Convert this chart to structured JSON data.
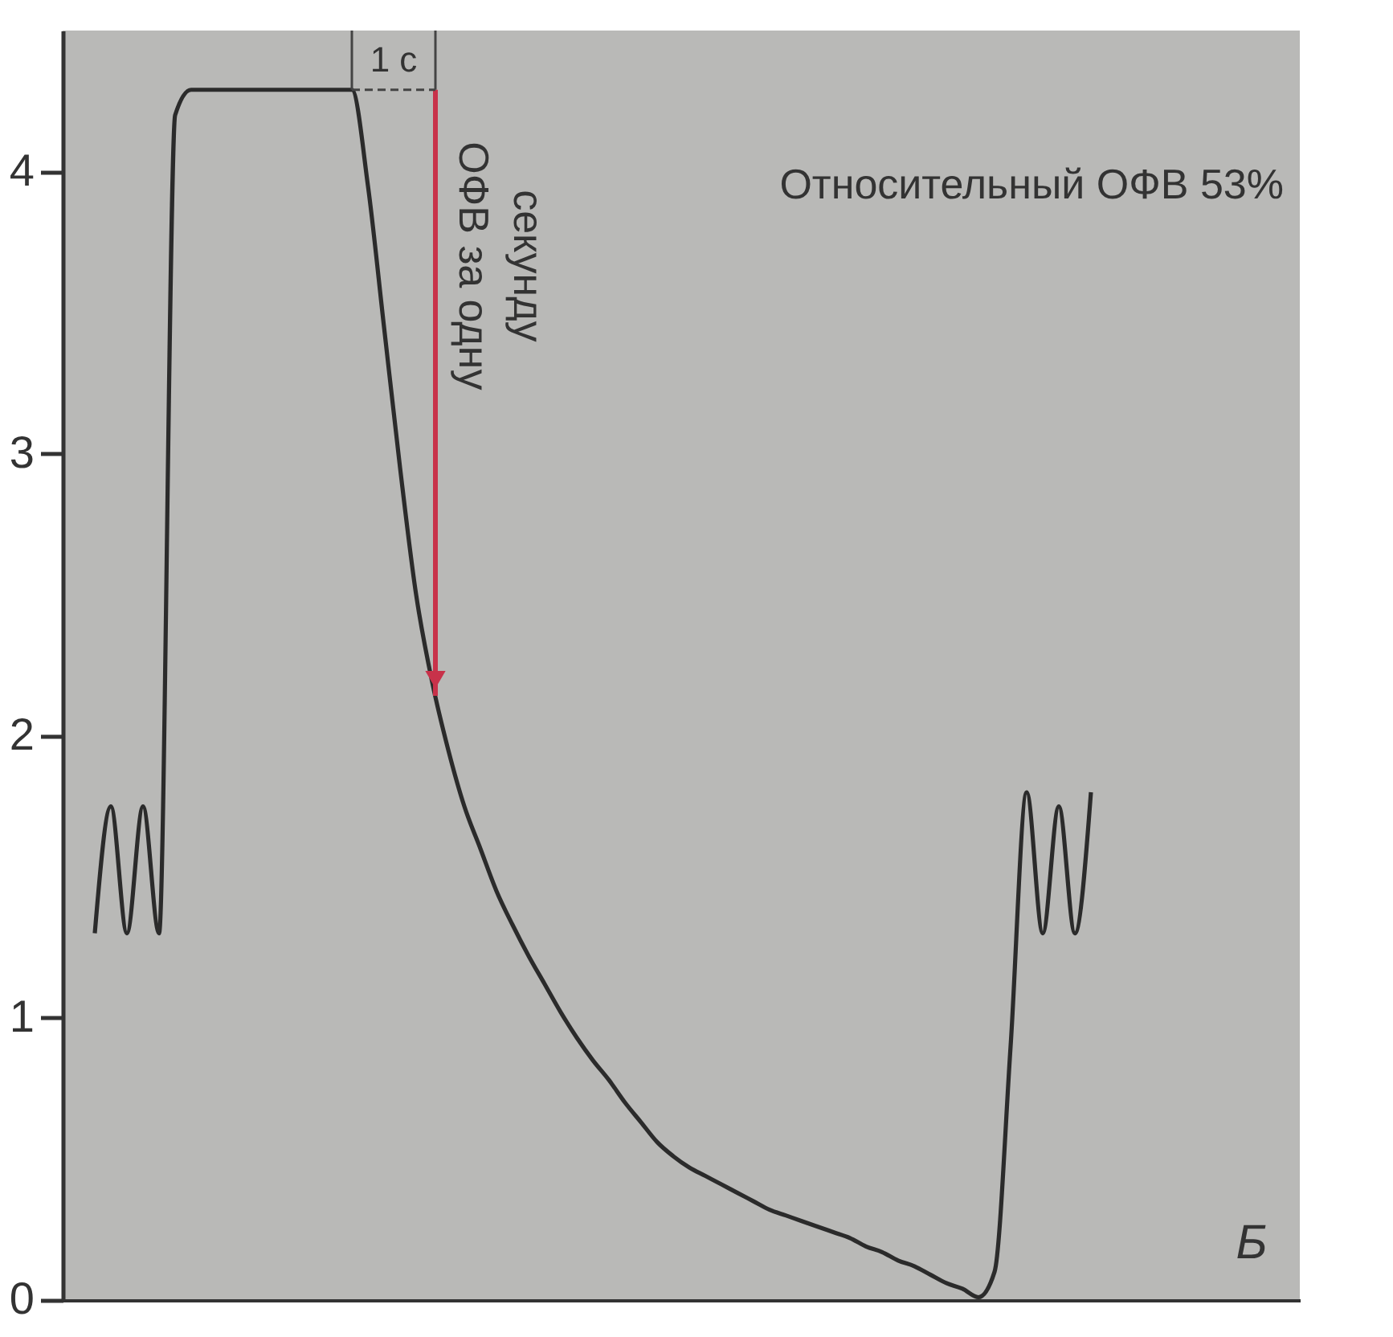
{
  "chart_data": {
    "type": "line",
    "categories": [
      null,
      null,
      null,
      null,
      null,
      null,
      null,
      null,
      null,
      null,
      null,
      null,
      null,
      null,
      null,
      null,
      null,
      null,
      null,
      null,
      null,
      null,
      null,
      null,
      null,
      null,
      null,
      null,
      null,
      null,
      null,
      null,
      null,
      null,
      null,
      null,
      null,
      null,
      null,
      null,
      null,
      null,
      null,
      null,
      null,
      null,
      null,
      null,
      null,
      null,
      null,
      null,
      null,
      null,
      null,
      null,
      null,
      null,
      null,
      null,
      null,
      null,
      null
    ],
    "values": [
      1.3,
      1.75,
      1.3,
      1.75,
      1.3,
      4.2,
      4.29,
      4.29,
      4.29,
      4.29,
      4.29,
      4.29,
      4.29,
      4.29,
      4.29,
      4.29,
      4.29,
      3.95,
      3.45,
      2.95,
      2.5,
      2.19,
      1.95,
      1.75,
      1.6,
      1.45,
      1.33,
      1.22,
      1.12,
      1.02,
      0.93,
      0.85,
      0.78,
      0.7,
      0.63,
      0.56,
      0.51,
      0.47,
      0.44,
      0.41,
      0.38,
      0.35,
      0.32,
      0.3,
      0.28,
      0.26,
      0.24,
      0.22,
      0.19,
      0.17,
      0.14,
      0.12,
      0.09,
      0.06,
      0.04,
      0.01,
      0.1,
      0.9,
      1.8,
      1.3,
      1.75,
      1.3,
      1.8
    ],
    "color": "#2b2b2b",
    "ylim": [
      0,
      4.5
    ],
    "yticks": [
      0,
      1,
      2,
      3,
      4
    ],
    "tick_labels": "y",
    "grid": false,
    "annotations": [
      "Относительный ОФВ 53%",
      "1 с",
      "ОФВ за одну секунду",
      "Б"
    ]
  }
}
